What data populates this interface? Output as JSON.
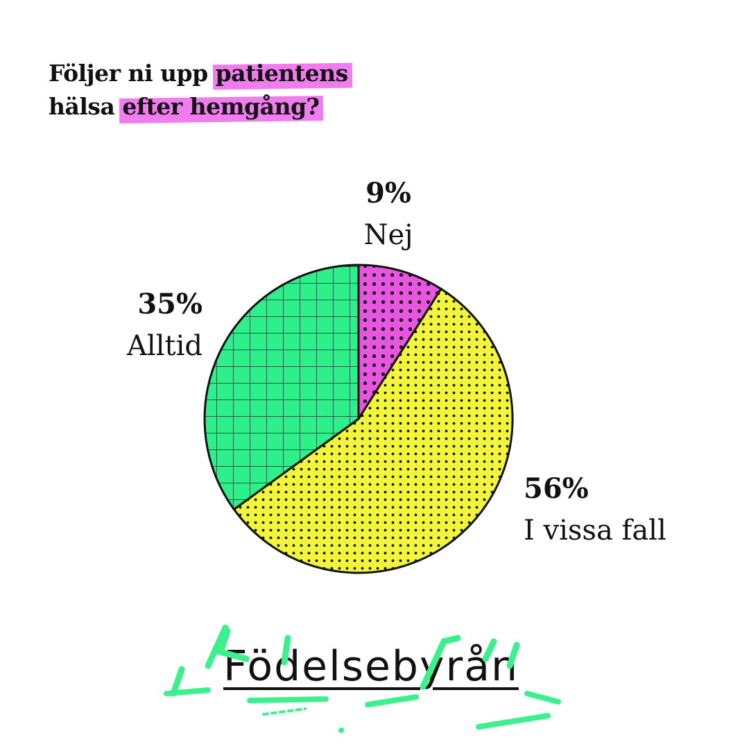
{
  "title": {
    "line1": "Följer ni upp",
    "line1_highlight": "patientens",
    "line2_start": "hälsa",
    "line2_highlight": "efter hemgång?"
  },
  "brand": "Födelsebyrån",
  "colors": {
    "nej": "#e855e0",
    "i_vissa_fall": "#f2f53a",
    "alltid": "#2ef08a",
    "highlight": "#f07cf0",
    "ink": "#111111"
  },
  "chart_data": {
    "type": "pie",
    "title": "Följer ni upp patientens hälsa efter hemgång?",
    "categories": [
      "Nej",
      "I vissa fall",
      "Alltid"
    ],
    "values": [
      9,
      56,
      35
    ],
    "value_labels": [
      "9%",
      "56%",
      "35%"
    ],
    "legend": "none"
  }
}
